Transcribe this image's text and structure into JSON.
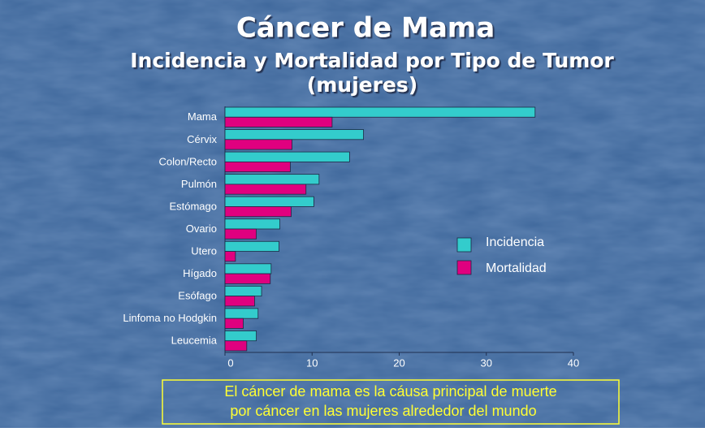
{
  "chart_data": {
    "type": "hbar",
    "title": "Cáncer de Mama",
    "subtitle": [
      "Incidencia y Mortalidad por Tipo de Tumor",
      "(mujeres)"
    ],
    "categories": [
      "Mama",
      "Cérvix",
      "Colon/Recto",
      "Pulmón",
      "Estómago",
      "Ovario",
      "Utero",
      "Hígado",
      "Esófago",
      "Linfoma no Hodgkin",
      "Leucemia"
    ],
    "series": [
      {
        "name": "Incidencia",
        "color": "#33cccc",
        "values": [
          35.6,
          15.9,
          14.3,
          10.8,
          10.2,
          6.3,
          6.2,
          5.3,
          4.2,
          3.8,
          3.6
        ]
      },
      {
        "name": "Mortalidad",
        "color": "#e0007f",
        "values": [
          12.3,
          7.7,
          7.5,
          9.3,
          7.6,
          3.6,
          1.2,
          5.2,
          3.4,
          2.1,
          2.5
        ]
      }
    ],
    "xlim": [
      0,
      40
    ],
    "xticks": [
      0,
      10,
      20,
      30,
      40
    ],
    "legend": "right",
    "note": [
      "El cáncer de mama es la cáusa principal de muerte",
      "por cáncer en las mujeres alrededor del mundo"
    ]
  }
}
